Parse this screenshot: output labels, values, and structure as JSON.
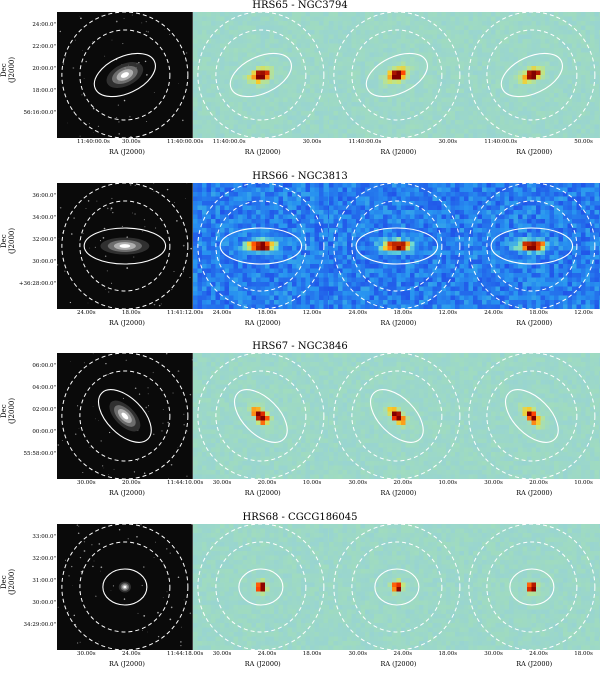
{
  "axis_labels": {
    "dec": "Dec (J2000)",
    "ra": "RA (J2000)"
  },
  "colors": {
    "optical_bg": "#0a0a0a",
    "map_bg_cool": "#9fd8c8",
    "map_bg_blue": "#1a48e0",
    "source_hot": "#8b0000",
    "source_warm": "#ff3000",
    "contour": "#ffffff"
  },
  "rows": [
    {
      "title": "HRS65 - NGC3794",
      "dec_ticks": [
        "24:00.0\"",
        "22:00.0\"",
        "20:00.0\"",
        "18:00.0\"",
        "56:16:00.0\""
      ],
      "ra_ticks": [
        [
          "11:40:00.0s",
          "30.00s",
          "11:40:00.00s"
        ],
        [
          "11:40:00.0s",
          "30.00s"
        ],
        [
          "11:40:00.0s",
          "30.00s"
        ],
        [
          "11:40:00.0s",
          "50.00s"
        ]
      ],
      "galaxy": {
        "rx": 0.16,
        "ry": 0.09,
        "angle": -25
      },
      "variant": "cool"
    },
    {
      "title": "HRS66 - NGC3813",
      "dec_ticks": [
        "36:00.0\"",
        "34:00.0\"",
        "32:00.0\"",
        "30:00.0\"",
        "+36:28:00.0\""
      ],
      "ra_ticks": [
        [
          "24.00s",
          "18.00s",
          "11:41:12.00s"
        ],
        [
          "24.00s",
          "18.00s",
          "12.00s"
        ],
        [
          "24.00s",
          "18.00s",
          "12.00s"
        ],
        [
          "24.00s",
          "18.00s",
          "12.00s"
        ]
      ],
      "galaxy": {
        "rx": 0.2,
        "ry": 0.07,
        "angle": 0
      },
      "variant": "blue"
    },
    {
      "title": "HRS67 - NGC3846",
      "dec_ticks": [
        "06:00.0\"",
        "04:00.0\"",
        "02:00.0\"",
        "00:00.0\"",
        "55:58:00.0\""
      ],
      "ra_ticks": [
        [
          "30.00s",
          "20.00s",
          "11:44:10.00s"
        ],
        [
          "30.00s",
          "20.00s",
          "10.00s"
        ],
        [
          "30.00s",
          "20.00s",
          "10.00s"
        ],
        [
          "30.00s",
          "20.00s",
          "10.00s"
        ]
      ],
      "galaxy": {
        "rx": 0.16,
        "ry": 0.08,
        "angle": 45
      },
      "variant": "cool"
    },
    {
      "title": "HRS68 - CGCG186045",
      "dec_ticks": [
        "33:00.0\"",
        "32:00.0\"",
        "31:00.0\"",
        "30:00.0\"",
        "34:29:00.0\""
      ],
      "ra_ticks": [
        [
          "30.00s",
          "24.00s",
          "11:44:18.00s"
        ],
        [
          "30.00s",
          "24.00s",
          "18.00s"
        ],
        [
          "30.00s",
          "24.00s",
          "18.00s"
        ],
        [
          "30.00s",
          "24.00s",
          "18.00s"
        ]
      ],
      "galaxy": {
        "rx": 0.05,
        "ry": 0.045,
        "angle": 0
      },
      "variant": "cool"
    }
  ]
}
